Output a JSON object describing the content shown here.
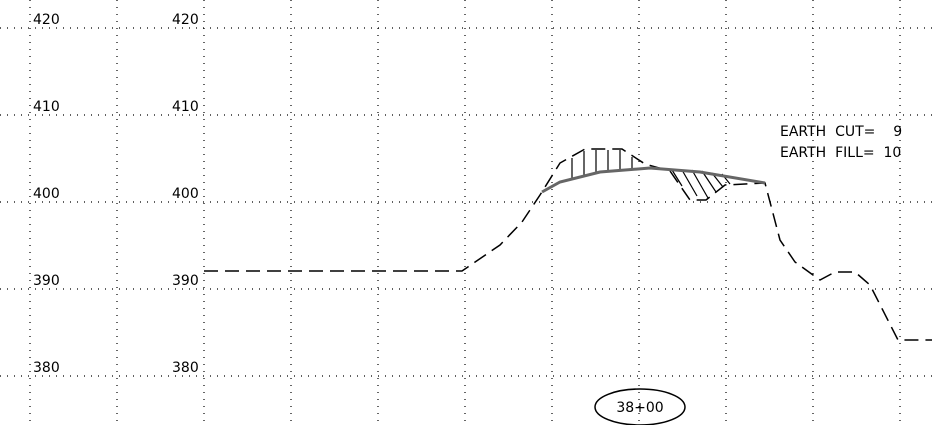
{
  "elevations_left": [
    "420",
    "410",
    "400",
    "390",
    "380"
  ],
  "elevations_right": [
    "420",
    "410",
    "400",
    "390",
    "380"
  ],
  "annotations": [
    "EARTH  CUT=    9",
    "EARTH  FILL=  10"
  ],
  "station": "38+00"
}
